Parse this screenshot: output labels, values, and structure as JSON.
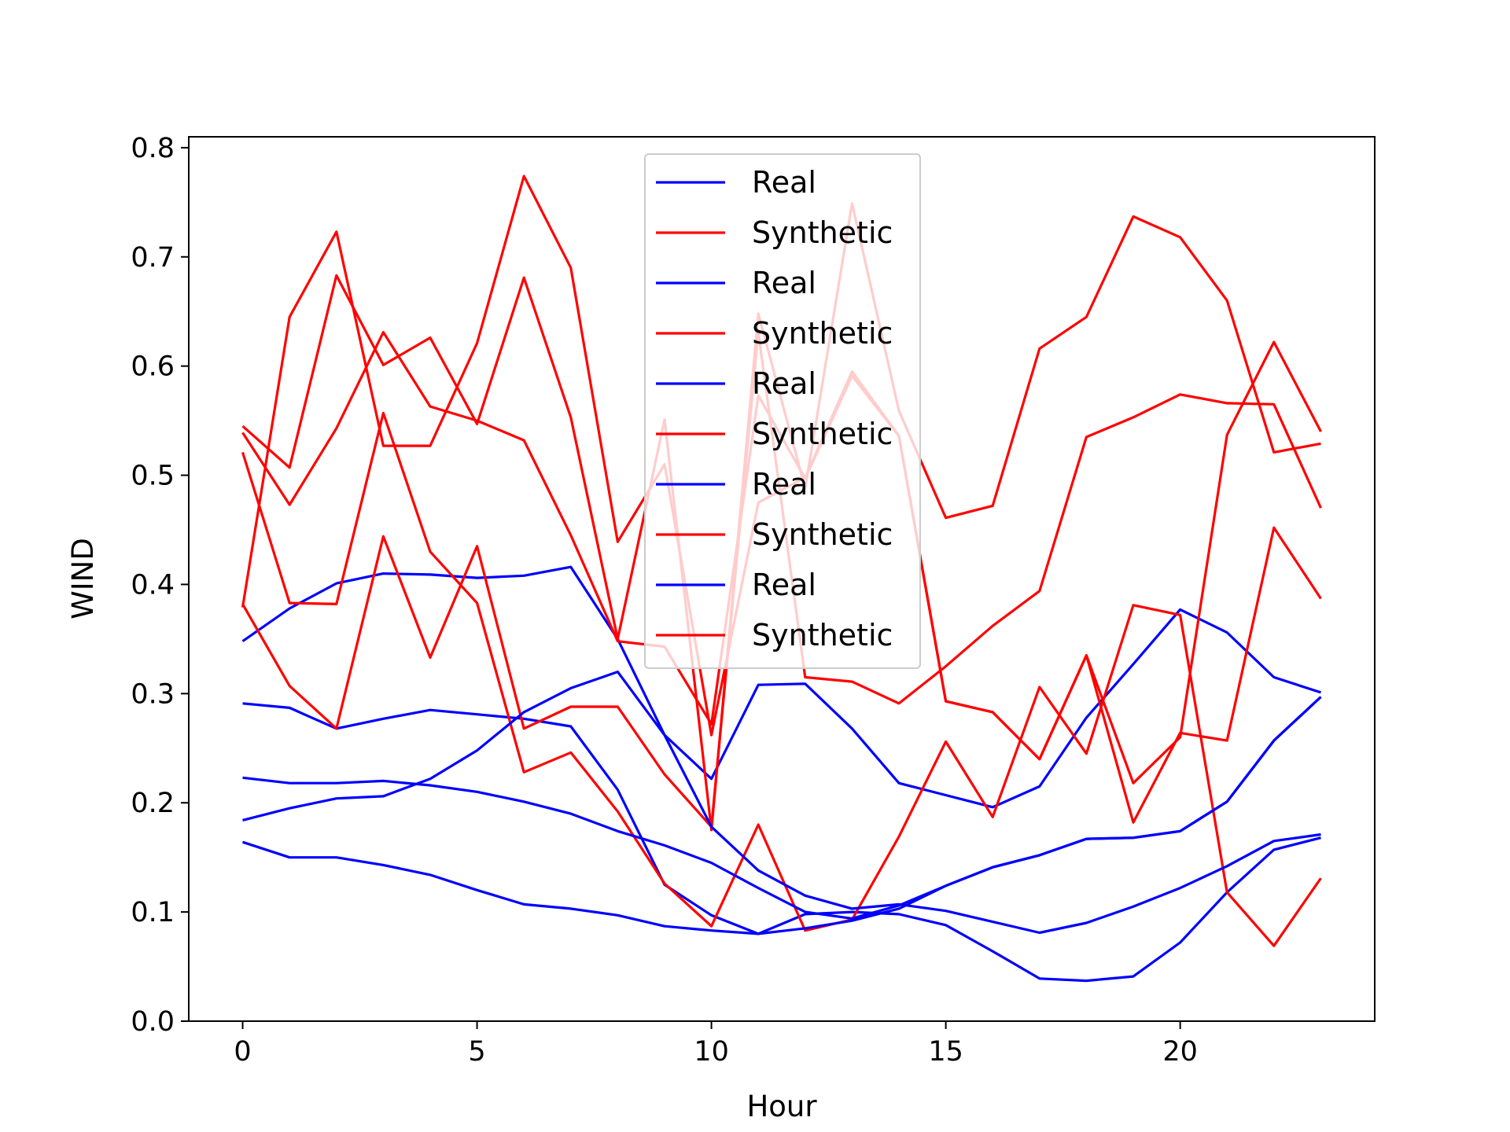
{
  "chart_data": {
    "type": "line",
    "title": "",
    "xlabel": "Hour",
    "ylabel": "WIND",
    "xlim": [
      -1.15,
      24.15
    ],
    "ylim": [
      0,
      0.81
    ],
    "xticks": [
      0,
      5,
      10,
      15,
      20
    ],
    "xtick_labels": [
      "0",
      "5",
      "10",
      "15",
      "20"
    ],
    "yticks": [
      0.0,
      0.1,
      0.2,
      0.3,
      0.4,
      0.5,
      0.6,
      0.7,
      0.8
    ],
    "ytick_labels": [
      "0.0",
      "0.1",
      "0.2",
      "0.3",
      "0.4",
      "0.5",
      "0.6",
      "0.7",
      "0.8"
    ],
    "grid": false,
    "legend_position": "upper center",
    "colors": {
      "Real": "#0000ff",
      "Synthetic": "#ff0000"
    },
    "x": [
      0,
      1,
      2,
      3,
      4,
      5,
      6,
      7,
      8,
      9,
      10,
      11,
      12,
      13,
      14,
      15,
      16,
      17,
      18,
      19,
      20,
      21,
      22,
      23
    ],
    "series": [
      {
        "name": "Real",
        "values": [
          0.348,
          0.378,
          0.401,
          0.41,
          0.409,
          0.406,
          0.408,
          0.416,
          0.35,
          0.262,
          0.222,
          0.308,
          0.309,
          0.268,
          0.218,
          0.207,
          0.196,
          0.215,
          0.278,
          0.327,
          0.377,
          0.356,
          0.315,
          0.301
        ]
      },
      {
        "name": "Synthetic",
        "values": [
          0.545,
          0.507,
          0.683,
          0.601,
          0.626,
          0.547,
          0.681,
          0.553,
          0.35,
          0.551,
          0.175,
          0.648,
          0.488,
          0.749,
          0.559,
          0.461,
          0.472,
          0.616,
          0.645,
          0.737,
          0.718,
          0.66,
          0.521,
          0.529
        ]
      },
      {
        "name": "Real",
        "values": [
          0.291,
          0.287,
          0.268,
          0.277,
          0.285,
          0.281,
          0.277,
          0.27,
          0.212,
          0.125,
          0.097,
          0.08,
          0.098,
          0.1,
          0.098,
          0.088,
          0.064,
          0.039,
          0.037,
          0.041,
          0.072,
          0.118,
          0.157,
          0.168
        ]
      },
      {
        "name": "Synthetic",
        "values": [
          0.521,
          0.383,
          0.382,
          0.557,
          0.43,
          0.383,
          0.228,
          0.246,
          0.192,
          0.126,
          0.087,
          0.18,
          0.083,
          0.093,
          0.169,
          0.256,
          0.187,
          0.306,
          0.245,
          0.381,
          0.372,
          0.118,
          0.069,
          0.131
        ]
      },
      {
        "name": "Real",
        "values": [
          0.223,
          0.218,
          0.218,
          0.22,
          0.216,
          0.21,
          0.201,
          0.19,
          0.174,
          0.161,
          0.145,
          0.122,
          0.1,
          0.094,
          0.106,
          0.124,
          0.141,
          0.152,
          0.167,
          0.168,
          0.174,
          0.201,
          0.257,
          0.297
        ]
      },
      {
        "name": "Synthetic",
        "values": [
          0.382,
          0.307,
          0.268,
          0.444,
          0.333,
          0.435,
          0.268,
          0.288,
          0.288,
          0.226,
          0.178,
          0.631,
          0.315,
          0.311,
          0.291,
          0.325,
          0.362,
          0.394,
          0.535,
          0.553,
          0.574,
          0.566,
          0.565,
          0.47
        ]
      },
      {
        "name": "Real",
        "values": [
          0.184,
          0.195,
          0.204,
          0.206,
          0.222,
          0.248,
          0.283,
          0.305,
          0.32,
          0.262,
          0.178,
          0.138,
          0.115,
          0.103,
          0.107,
          0.101,
          0.091,
          0.081,
          0.09,
          0.105,
          0.122,
          0.142,
          0.165,
          0.171
        ]
      },
      {
        "name": "Synthetic",
        "values": [
          0.539,
          0.473,
          0.543,
          0.631,
          0.563,
          0.55,
          0.532,
          0.445,
          0.348,
          0.343,
          0.272,
          0.573,
          0.497,
          0.591,
          0.536,
          0.293,
          0.283,
          0.24,
          0.335,
          0.182,
          0.264,
          0.257,
          0.452,
          0.387
        ]
      },
      {
        "name": "Real",
        "values": [
          0.164,
          0.15,
          0.15,
          0.143,
          0.134,
          0.12,
          0.107,
          0.103,
          0.097,
          0.087,
          0.083,
          0.08,
          0.085,
          0.092,
          0.103,
          0.124,
          0.141,
          0.152,
          0.167,
          0.168,
          0.174,
          0.201,
          0.257,
          0.297
        ]
      },
      {
        "name": "Synthetic",
        "values": [
          0.379,
          0.645,
          0.723,
          0.527,
          0.527,
          0.621,
          0.774,
          0.69,
          0.439,
          0.51,
          0.262,
          0.475,
          0.498,
          0.595,
          0.536,
          0.293,
          0.283,
          0.24,
          0.335,
          0.218,
          0.26,
          0.537,
          0.622,
          0.54
        ]
      }
    ]
  }
}
